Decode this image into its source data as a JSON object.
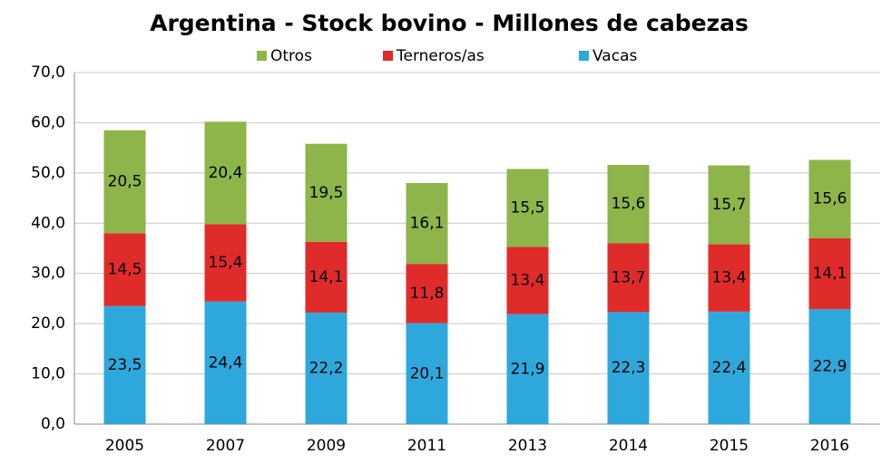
{
  "chart_data": {
    "type": "stacked_bar",
    "title": "Argentina - Stock bovino - Millones de cabezas",
    "categories": [
      "2005",
      "2007",
      "2009",
      "2011",
      "2013",
      "2014",
      "2015",
      "2016"
    ],
    "series": [
      {
        "name": "Vacas",
        "color": "#2ea8dc",
        "values": [
          23.5,
          24.4,
          22.2,
          20.1,
          21.9,
          22.3,
          22.4,
          22.9
        ],
        "value_labels": [
          "23,5",
          "24,4",
          "22,2",
          "20,1",
          "21,9",
          "22,3",
          "22,4",
          "22,9"
        ]
      },
      {
        "name": "Terneros/as",
        "color": "#e02b2b",
        "values": [
          14.5,
          15.4,
          14.1,
          11.8,
          13.4,
          13.7,
          13.4,
          14.1
        ],
        "value_labels": [
          "14,5",
          "15,4",
          "14,1",
          "11,8",
          "13,4",
          "13,7",
          "13,4",
          "14,1"
        ]
      },
      {
        "name": "Otros",
        "color": "#8db54a",
        "values": [
          20.5,
          20.4,
          19.5,
          16.1,
          15.5,
          15.6,
          15.7,
          15.6
        ],
        "value_labels": [
          "20,5",
          "20,4",
          "19,5",
          "16,1",
          "15,5",
          "15,6",
          "15,7",
          "15,6"
        ]
      }
    ],
    "ylim": [
      0,
      70
    ],
    "yticks": [
      {
        "value": 0,
        "label": "0,0"
      },
      {
        "value": 10,
        "label": "10,0"
      },
      {
        "value": 20,
        "label": "20,0"
      },
      {
        "value": 30,
        "label": "30,0"
      },
      {
        "value": 40,
        "label": "40,0"
      },
      {
        "value": 50,
        "label": "50,0"
      },
      {
        "value": 60,
        "label": "60,0"
      },
      {
        "value": 70,
        "label": "70,0"
      }
    ],
    "grid": true,
    "legend": "top"
  }
}
